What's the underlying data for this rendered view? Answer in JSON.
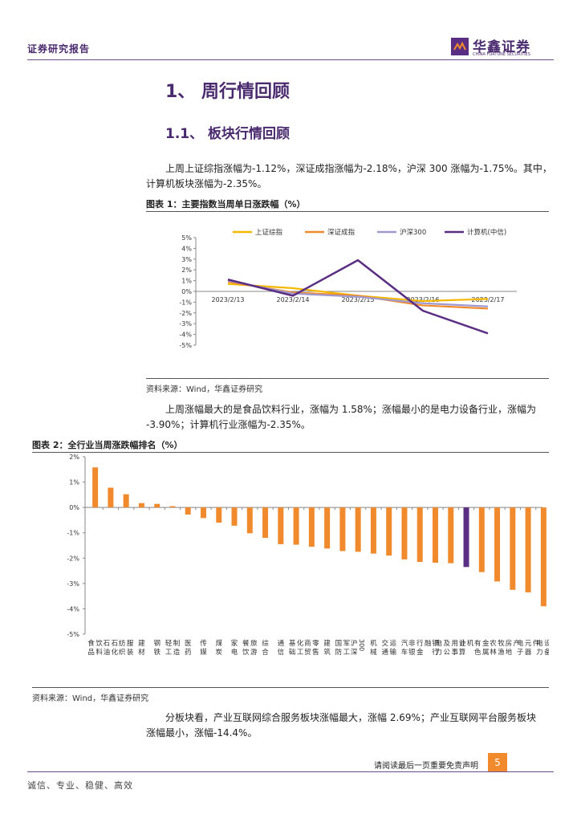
{
  "header": {
    "report_type": "证券研究报告",
    "logo_cn": "华鑫证券",
    "logo_en": "CHINA FORTUNE SECURITIES"
  },
  "section1": {
    "title": "1、 周行情回顾"
  },
  "section11": {
    "title": "1.1、 板块行情回顾"
  },
  "para1": {
    "line1": "上周上证综指涨幅为-1.12%，深证成指涨幅为-2.18%，沪深 300 涨幅为-1.75%。其中，",
    "line2": "计算机板块涨幅为-2.35%。"
  },
  "fig1": {
    "title": "图表 1：主要指数当周单日涨跌幅（%）",
    "source": "资料来源：Wind，华鑫证券研究"
  },
  "para2": {
    "line1": "上周涨幅最大的是食品饮料行业，涨幅为 1.58%；涨幅最小的是电力设备行业，涨幅为",
    "line2": "-3.90%；计算机行业涨幅为-2.35%。"
  },
  "fig2": {
    "title": "图表 2：全行业当周涨跌幅排名（%）",
    "source": "资料来源：Wind，华鑫证券研究"
  },
  "para3": {
    "line1": "分板块看，产业互联网综合服务板块涨幅最大，涨幅 2.69%；产业互联网平台服务板块",
    "line2": "涨幅最小，涨幅-14.4%。"
  },
  "footer": {
    "disclaimer": "请阅读最后一页重要免责声明",
    "page": "5",
    "motto": "诚信、专业、稳健、高效"
  },
  "colors": {
    "orange": "#f08a2c",
    "purple": "#5a2e82",
    "yellow": "#f5b800",
    "lavender": "#9f9ad0"
  },
  "chart_data": [
    {
      "type": "line",
      "title": "主要指数当周单日涨跌幅（%）",
      "categories": [
        "2023/2/13",
        "2023/2/14",
        "2023/2/15",
        "2023/2/16",
        "2023/2/17"
      ],
      "ylim": [
        -5,
        5
      ],
      "yticks": [
        "5%",
        "4%",
        "3%",
        "2%",
        "1%",
        "0%",
        "-1%",
        "-2%",
        "-3%",
        "-4%",
        "-5%"
      ],
      "legend_position": "top",
      "series": [
        {
          "name": "上证综指",
          "color": "#f5b800",
          "values": [
            0.7,
            0.3,
            -0.4,
            -0.9,
            -0.7
          ]
        },
        {
          "name": "深证成指",
          "color": "#f08a2c",
          "values": [
            0.9,
            -0.1,
            -0.4,
            -1.3,
            -1.6
          ]
        },
        {
          "name": "沪深300",
          "color": "#9f9ad0",
          "values": [
            1.0,
            -0.2,
            -0.5,
            -1.1,
            -1.4
          ]
        },
        {
          "name": "计算机(中信)",
          "color": "#5a2e82",
          "values": [
            1.1,
            -0.4,
            2.9,
            -1.8,
            -3.9
          ]
        }
      ]
    },
    {
      "type": "bar",
      "title": "全行业当周涨跌幅排名（%）",
      "ylim": [
        -5,
        2
      ],
      "yticks": [
        "2%",
        "1%",
        "0%",
        "-1%",
        "-2%",
        "-3%",
        "-4%",
        "-5%"
      ],
      "highlight": "计算机",
      "categories": [
        "食品饮料",
        "石油石化",
        "纺织服装",
        "建材",
        "钢铁",
        "轻工制造",
        "医药",
        "传媒",
        "煤炭",
        "家电",
        "餐饮旅游",
        "综合",
        "通信",
        "基础化工",
        "商贸零售",
        "建筑",
        "国防军工",
        "沪深300",
        "机械",
        "交通运输",
        "汽车",
        "非银行金融",
        "银行",
        "电力及公用事业",
        "计算机",
        "有色金属",
        "农林牧渔",
        "房地产",
        "电子元器件",
        "电力设备"
      ],
      "labels": [
        "食品\n饮料",
        "石油\n石化",
        "纺织\n服装",
        "建材",
        "钢铁",
        "轻工\n制造",
        "医药",
        "传媒",
        "煤炭",
        "家电",
        "餐饮\n旅游",
        "综合",
        "通信",
        "基础\n化工",
        "商贸\n零售",
        "建筑",
        "国防\n军工",
        "沪深\n300",
        "机械",
        "交通\n运输",
        "汽车",
        "非银\n行金\n融",
        "银行",
        "电力\n及公\n用事\n业",
        "计算\n机",
        "有色\n金属",
        "农林\n牧渔",
        "房地\n产",
        "电子\n元器\n件",
        "电力\n设备"
      ],
      "values": [
        1.58,
        0.78,
        0.52,
        0.17,
        0.14,
        0.05,
        -0.28,
        -0.42,
        -0.6,
        -0.72,
        -1.02,
        -1.2,
        -1.45,
        -1.47,
        -1.55,
        -1.62,
        -1.72,
        -1.75,
        -1.82,
        -1.9,
        -2.05,
        -2.15,
        -2.18,
        -2.2,
        -2.35,
        -2.55,
        -2.92,
        -3.25,
        -3.35,
        -3.9
      ]
    }
  ]
}
